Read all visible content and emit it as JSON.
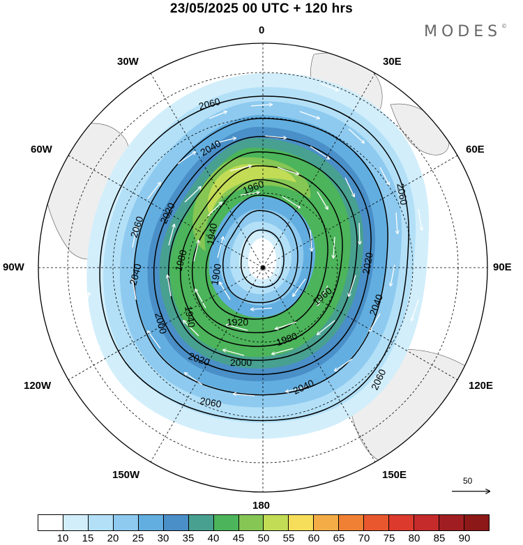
{
  "title": "23/05/2025  00 UTC  + 120 hrs",
  "brand": "MODES",
  "brand_mark": "©",
  "longitude_labels": [
    "0",
    "30E",
    "60E",
    "90E",
    "120E",
    "150E",
    "180",
    "150W",
    "120W",
    "90W",
    "60W",
    "30W"
  ],
  "contour_labels": [
    "1900",
    "1920",
    "1940",
    "1960",
    "1980",
    "2000",
    "2020",
    "2040",
    "2060"
  ],
  "reference_vector": {
    "value": "50"
  },
  "colorbar": {
    "tick_labels": [
      "10",
      "15",
      "20",
      "25",
      "30",
      "35",
      "40",
      "45",
      "50",
      "55",
      "60",
      "65",
      "70",
      "75",
      "80",
      "85",
      "90"
    ],
    "colors": [
      "#ffffff",
      "#d2eefb",
      "#b3e0f7",
      "#8ecaef",
      "#63aee0",
      "#4a8fc8",
      "#48a090",
      "#4cb45a",
      "#85c654",
      "#c2dc56",
      "#f6de5a",
      "#f4ac46",
      "#f08134",
      "#e9572e",
      "#dc3a2c",
      "#c52b2a",
      "#a01e22",
      "#8c1818"
    ]
  },
  "map": {
    "projection": "south-polar-stereographic",
    "field": "wind speed (shaded) and geopotential height (contours)",
    "grid_meridian_step_deg": 30
  }
}
